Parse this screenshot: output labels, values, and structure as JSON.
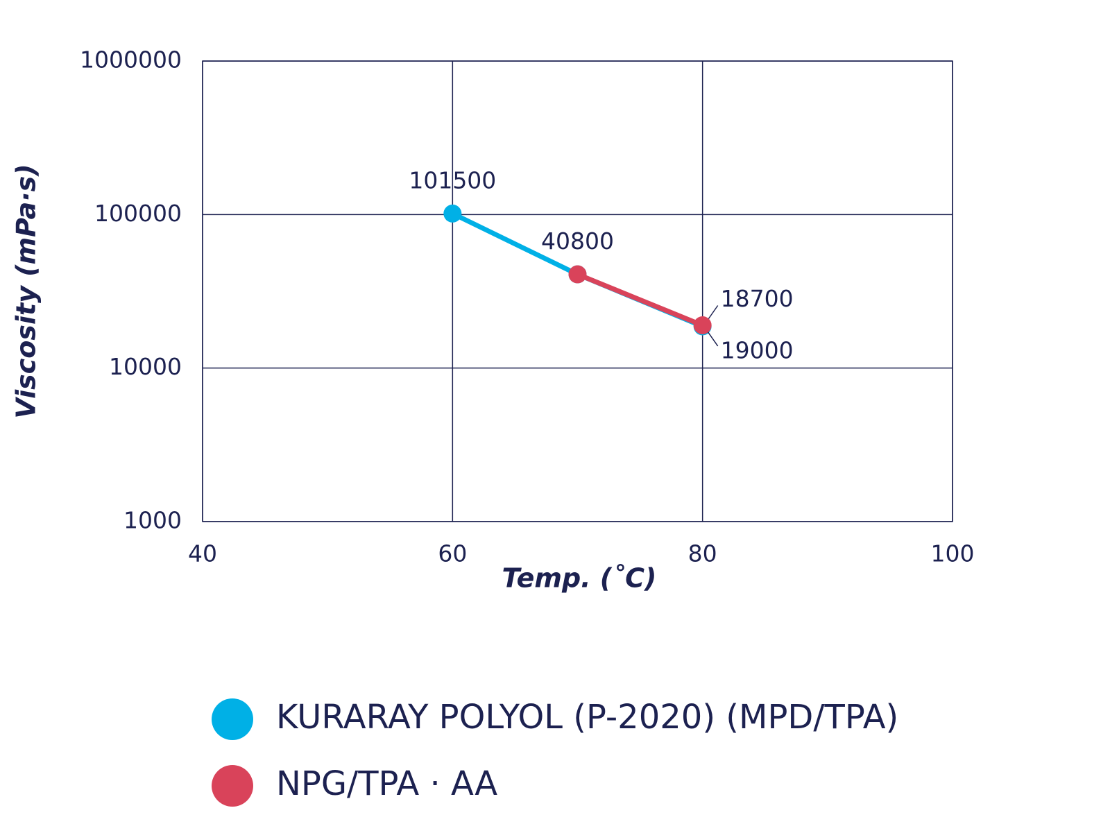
{
  "chart_data": {
    "type": "line",
    "x_label": "Temp. (˚C)",
    "y_label": "Viscosity (mPa·s)",
    "xlim": [
      40,
      100
    ],
    "xticks": [
      40,
      60,
      80,
      100
    ],
    "ylim": [
      1000,
      1000000
    ],
    "yticks": [
      1000,
      10000,
      100000,
      1000000
    ],
    "y_scale": "log",
    "grid": true,
    "series": [
      {
        "name": "KURARAY POLYOL (P-2020) (MPD/TPA)",
        "color": "#00b0e6",
        "x": [
          60,
          70,
          80
        ],
        "values": [
          101500,
          40800,
          18700
        ],
        "show_labels": [
          true,
          true,
          true
        ]
      },
      {
        "name": "NPG/TPA · AA",
        "color": "#d9435a",
        "x": [
          70,
          80
        ],
        "values": [
          40800,
          19000
        ],
        "show_labels": [
          false,
          true
        ]
      }
    ]
  }
}
